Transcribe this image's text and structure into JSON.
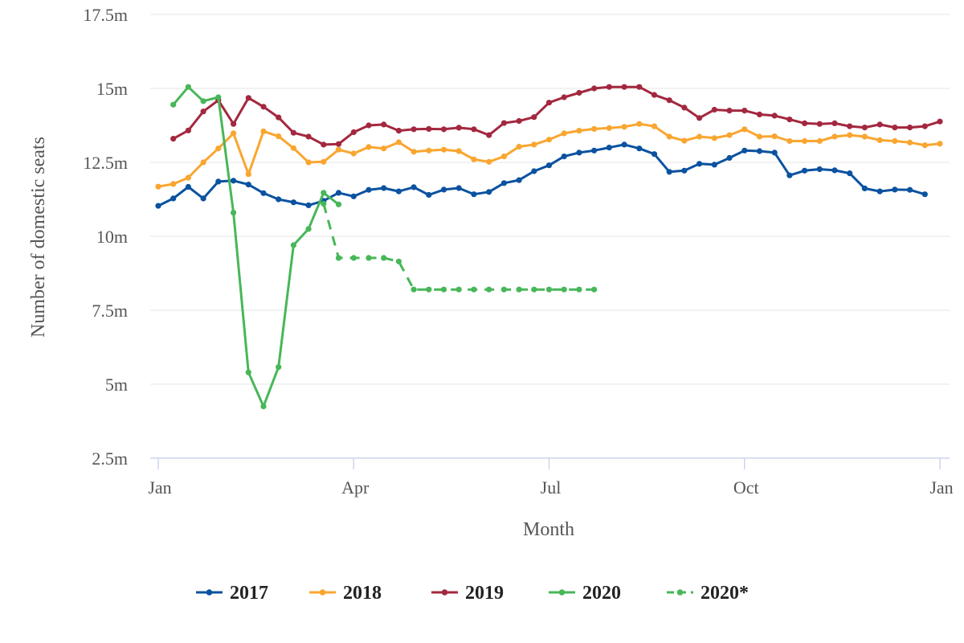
{
  "chart_data": {
    "type": "line",
    "title": "",
    "xlabel": "Month",
    "ylabel": "Number of domestic seats",
    "x_range_months": [
      0,
      12
    ],
    "x_ticks": [
      {
        "label": "Jan",
        "value": 0
      },
      {
        "label": "Apr",
        "value": 3
      },
      {
        "label": "Jul",
        "value": 6
      },
      {
        "label": "Oct",
        "value": 9
      },
      {
        "label": "Jan",
        "value": 12
      }
    ],
    "ylim": [
      2.5,
      17.5
    ],
    "y_ticks": [
      {
        "label": "2.5m",
        "value": 2.5
      },
      {
        "label": "5m",
        "value": 5
      },
      {
        "label": "7.5m",
        "value": 7.5
      },
      {
        "label": "10m",
        "value": 10
      },
      {
        "label": "12.5m",
        "value": 12.5
      },
      {
        "label": "15m",
        "value": 15
      },
      {
        "label": "17.5m",
        "value": 17.5
      }
    ],
    "y_unit": "million seats",
    "grid": "horizontal",
    "legend_placement": "bottom",
    "series": [
      {
        "name": "2017",
        "color": "#0b52a0",
        "dashed": false,
        "start_week": 0,
        "values": [
          11.03,
          11.28,
          11.67,
          11.28,
          11.85,
          11.88,
          11.75,
          11.46,
          11.25,
          11.15,
          11.05,
          11.2,
          11.47,
          11.35,
          11.57,
          11.63,
          11.52,
          11.66,
          11.4,
          11.58,
          11.63,
          11.42,
          11.5,
          11.8,
          11.9,
          12.2,
          12.4,
          12.7,
          12.83,
          12.9,
          13.0,
          13.1,
          12.97,
          12.78,
          12.18,
          12.22,
          12.45,
          12.42,
          12.65,
          12.9,
          12.88,
          12.83,
          12.06,
          12.22,
          12.27,
          12.23,
          12.13,
          11.62,
          11.52,
          11.58,
          11.57,
          11.42
        ]
      },
      {
        "name": "2018",
        "color": "#f9a630",
        "dashed": false,
        "start_week": 0,
        "values": [
          11.68,
          11.77,
          11.98,
          12.5,
          12.97,
          13.48,
          12.1,
          13.55,
          13.38,
          12.98,
          12.5,
          12.52,
          12.93,
          12.8,
          13.02,
          12.97,
          13.18,
          12.86,
          12.9,
          12.93,
          12.88,
          12.6,
          12.52,
          12.7,
          13.03,
          13.1,
          13.27,
          13.48,
          13.57,
          13.63,
          13.66,
          13.7,
          13.8,
          13.72,
          13.37,
          13.23,
          13.37,
          13.32,
          13.42,
          13.62,
          13.37,
          13.38,
          13.22,
          13.22,
          13.22,
          13.37,
          13.42,
          13.37,
          13.25,
          13.22,
          13.17,
          13.08,
          13.13
        ]
      },
      {
        "name": "2019",
        "color": "#a3283f",
        "dashed": false,
        "start_week": 1,
        "values": [
          13.3,
          13.58,
          14.22,
          14.6,
          13.8,
          14.68,
          14.38,
          14.02,
          13.5,
          13.37,
          13.1,
          13.12,
          13.52,
          13.75,
          13.78,
          13.57,
          13.62,
          13.63,
          13.62,
          13.67,
          13.62,
          13.42,
          13.83,
          13.9,
          14.03,
          14.52,
          14.7,
          14.85,
          15.0,
          15.05,
          15.05,
          15.05,
          14.78,
          14.6,
          14.35,
          14.0,
          14.28,
          14.25,
          14.25,
          14.12,
          14.08,
          13.95,
          13.82,
          13.8,
          13.82,
          13.72,
          13.68,
          13.78,
          13.68,
          13.68,
          13.72,
          13.88
        ]
      },
      {
        "name": "2020",
        "color": "#47b758",
        "dashed": false,
        "start_week": 1,
        "values": [
          14.45,
          15.05,
          14.57,
          14.7,
          10.8,
          5.4,
          4.25,
          5.58,
          9.7,
          10.25,
          11.47,
          11.08
        ]
      },
      {
        "name": "2020*",
        "color": "#47b758",
        "dashed": true,
        "start_week": 11,
        "values": [
          11.1,
          9.27,
          9.27,
          9.27,
          9.27,
          9.15,
          8.2,
          8.2,
          8.2,
          8.2,
          8.2,
          8.2,
          8.2,
          8.2,
          8.2,
          8.2,
          8.2,
          8.2,
          8.2
        ]
      }
    ]
  }
}
